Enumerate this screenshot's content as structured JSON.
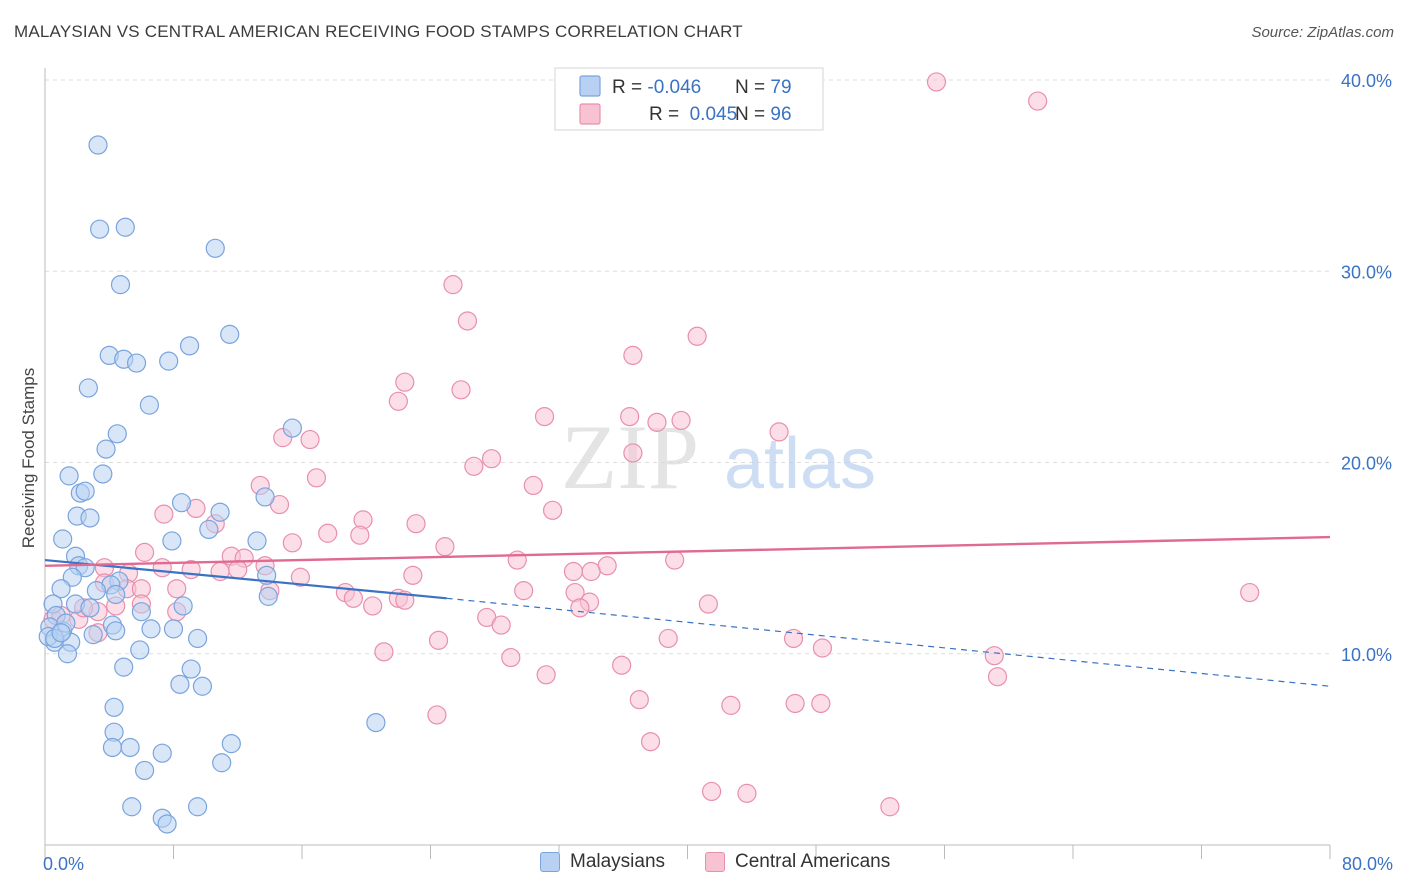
{
  "title": "MALAYSIAN VS CENTRAL AMERICAN RECEIVING FOOD STAMPS CORRELATION CHART",
  "source": "Source: ZipAtlas.com",
  "watermark": {
    "zip": "ZIP",
    "atlas": "atlas"
  },
  "colors": {
    "malaysians_fill": "#b8d1f2",
    "malaysians_stroke": "#7aa4de",
    "malaysians_line": "#3a72c4",
    "central_fill": "#f7c3d3",
    "central_stroke": "#e98fad",
    "central_line": "#e06a92",
    "value_text": "#3a72c4",
    "grid": "#dddddd"
  },
  "stats_legend": {
    "rows": [
      {
        "r_label": "R = ",
        "r_value": "-0.046",
        "n_label": "N = ",
        "n_value": "79"
      },
      {
        "r_label": "R = ",
        "r_value": " 0.045",
        "n_label": "N = ",
        "n_value": "96"
      }
    ]
  },
  "chart_data": {
    "type": "scatter",
    "title": "MALAYSIAN VS CENTRAL AMERICAN RECEIVING FOOD STAMPS CORRELATION CHART",
    "xlabel": "",
    "ylabel": "Receiving Food Stamps",
    "xlim": [
      0,
      80
    ],
    "ylim": [
      0,
      40
    ],
    "x_tick_labels": [
      "0.0%",
      "80.0%"
    ],
    "y_ticks": [
      10,
      20,
      30,
      40
    ],
    "y_tick_labels": [
      "10.0%",
      "20.0%",
      "30.0%",
      "40.0%"
    ],
    "grid": true,
    "legend_position": "bottom",
    "series": [
      {
        "name": "Malaysians",
        "r": -0.046,
        "n": 79,
        "trend": {
          "x0": 0,
          "y0": 14.9,
          "x1": 25,
          "y1": 12.9,
          "dashed_to_x": 80,
          "dashed_to_y": 8.3
        },
        "points": [
          [
            3.3,
            36.6
          ],
          [
            3.4,
            32.2
          ],
          [
            5.0,
            32.3
          ],
          [
            10.6,
            31.2
          ],
          [
            4.7,
            29.3
          ],
          [
            11.5,
            26.7
          ],
          [
            9.0,
            26.1
          ],
          [
            4.0,
            25.6
          ],
          [
            4.9,
            25.4
          ],
          [
            5.7,
            25.2
          ],
          [
            7.7,
            25.3
          ],
          [
            2.7,
            23.9
          ],
          [
            6.5,
            23.0
          ],
          [
            15.4,
            21.8
          ],
          [
            4.5,
            21.5
          ],
          [
            3.8,
            20.7
          ],
          [
            1.5,
            19.3
          ],
          [
            3.6,
            19.4
          ],
          [
            2.2,
            18.4
          ],
          [
            2.5,
            18.5
          ],
          [
            13.7,
            18.2
          ],
          [
            8.5,
            17.9
          ],
          [
            2.0,
            17.2
          ],
          [
            2.8,
            17.1
          ],
          [
            10.9,
            17.4
          ],
          [
            10.2,
            16.5
          ],
          [
            1.1,
            16.0
          ],
          [
            7.9,
            15.9
          ],
          [
            13.2,
            15.9
          ],
          [
            1.9,
            15.1
          ],
          [
            2.1,
            14.6
          ],
          [
            2.5,
            14.5
          ],
          [
            13.8,
            14.1
          ],
          [
            1.7,
            14.0
          ],
          [
            4.6,
            13.8
          ],
          [
            4.1,
            13.6
          ],
          [
            1.0,
            13.4
          ],
          [
            3.2,
            13.3
          ],
          [
            4.4,
            13.1
          ],
          [
            13.9,
            13.0
          ],
          [
            0.5,
            12.6
          ],
          [
            1.9,
            12.6
          ],
          [
            2.8,
            12.4
          ],
          [
            8.6,
            12.5
          ],
          [
            0.7,
            12.0
          ],
          [
            6.0,
            12.2
          ],
          [
            0.3,
            11.4
          ],
          [
            4.2,
            11.5
          ],
          [
            4.4,
            11.2
          ],
          [
            6.6,
            11.3
          ],
          [
            8.0,
            11.3
          ],
          [
            3.0,
            11.0
          ],
          [
            1.1,
            11.2
          ],
          [
            9.5,
            10.8
          ],
          [
            0.6,
            10.6
          ],
          [
            1.6,
            10.6
          ],
          [
            0.2,
            10.9
          ],
          [
            5.9,
            10.2
          ],
          [
            1.4,
            10.0
          ],
          [
            4.9,
            9.3
          ],
          [
            9.1,
            9.2
          ],
          [
            8.4,
            8.4
          ],
          [
            9.8,
            8.3
          ],
          [
            4.3,
            7.2
          ],
          [
            20.6,
            6.4
          ],
          [
            4.3,
            5.9
          ],
          [
            11.6,
            5.3
          ],
          [
            4.2,
            5.1
          ],
          [
            5.3,
            5.1
          ],
          [
            7.3,
            4.8
          ],
          [
            11.0,
            4.3
          ],
          [
            6.2,
            3.9
          ],
          [
            5.4,
            2.0
          ],
          [
            9.5,
            2.0
          ],
          [
            7.3,
            1.4
          ],
          [
            7.6,
            1.1
          ],
          [
            0.6,
            10.8
          ],
          [
            1.3,
            11.6
          ],
          [
            1.0,
            11.1
          ]
        ]
      },
      {
        "name": "Central Americans",
        "r": 0.045,
        "n": 96,
        "trend": {
          "x0": 0,
          "y0": 14.6,
          "x1": 80,
          "y1": 16.1
        },
        "points": [
          [
            55.5,
            39.9
          ],
          [
            61.8,
            38.9
          ],
          [
            25.4,
            29.3
          ],
          [
            26.3,
            27.4
          ],
          [
            40.6,
            26.6
          ],
          [
            36.6,
            25.6
          ],
          [
            22.4,
            24.2
          ],
          [
            25.9,
            23.8
          ],
          [
            22.0,
            23.2
          ],
          [
            31.1,
            22.4
          ],
          [
            36.4,
            22.4
          ],
          [
            38.1,
            22.1
          ],
          [
            39.6,
            22.2
          ],
          [
            45.7,
            21.6
          ],
          [
            14.8,
            21.3
          ],
          [
            16.5,
            21.2
          ],
          [
            36.6,
            20.5
          ],
          [
            27.8,
            20.2
          ],
          [
            26.7,
            19.8
          ],
          [
            16.9,
            19.2
          ],
          [
            30.4,
            18.8
          ],
          [
            13.4,
            18.8
          ],
          [
            14.6,
            17.8
          ],
          [
            9.4,
            17.6
          ],
          [
            7.4,
            17.3
          ],
          [
            19.8,
            17.0
          ],
          [
            23.1,
            16.8
          ],
          [
            31.6,
            17.5
          ],
          [
            10.6,
            16.8
          ],
          [
            17.6,
            16.3
          ],
          [
            19.6,
            16.2
          ],
          [
            15.4,
            15.8
          ],
          [
            24.9,
            15.6
          ],
          [
            11.6,
            15.1
          ],
          [
            12.4,
            15.0
          ],
          [
            6.2,
            15.3
          ],
          [
            13.7,
            14.6
          ],
          [
            29.4,
            14.9
          ],
          [
            39.2,
            14.9
          ],
          [
            35.0,
            14.6
          ],
          [
            7.3,
            14.5
          ],
          [
            3.7,
            14.5
          ],
          [
            12.0,
            14.4
          ],
          [
            9.1,
            14.4
          ],
          [
            10.9,
            14.3
          ],
          [
            5.2,
            14.2
          ],
          [
            22.9,
            14.1
          ],
          [
            15.9,
            14.0
          ],
          [
            32.9,
            14.3
          ],
          [
            34.0,
            14.3
          ],
          [
            3.7,
            13.7
          ],
          [
            5.1,
            13.4
          ],
          [
            6.0,
            13.4
          ],
          [
            8.2,
            13.4
          ],
          [
            18.7,
            13.2
          ],
          [
            14.0,
            13.3
          ],
          [
            29.8,
            13.3
          ],
          [
            33.0,
            13.2
          ],
          [
            75.0,
            13.2
          ],
          [
            19.2,
            12.9
          ],
          [
            22.0,
            12.9
          ],
          [
            22.4,
            12.8
          ],
          [
            6.0,
            12.6
          ],
          [
            8.2,
            12.2
          ],
          [
            20.4,
            12.5
          ],
          [
            33.9,
            12.7
          ],
          [
            41.3,
            12.6
          ],
          [
            4.4,
            12.5
          ],
          [
            0.5,
            11.8
          ],
          [
            2.1,
            11.8
          ],
          [
            3.3,
            12.2
          ],
          [
            27.5,
            11.9
          ],
          [
            28.4,
            11.5
          ],
          [
            33.3,
            12.4
          ],
          [
            3.3,
            11.1
          ],
          [
            38.8,
            10.8
          ],
          [
            46.6,
            10.8
          ],
          [
            24.5,
            10.7
          ],
          [
            48.4,
            10.3
          ],
          [
            21.1,
            10.1
          ],
          [
            29.0,
            9.8
          ],
          [
            59.1,
            9.9
          ],
          [
            35.9,
            9.4
          ],
          [
            31.2,
            8.9
          ],
          [
            59.3,
            8.8
          ],
          [
            37.0,
            7.6
          ],
          [
            42.7,
            7.3
          ],
          [
            46.7,
            7.4
          ],
          [
            48.3,
            7.4
          ],
          [
            24.4,
            6.8
          ],
          [
            37.7,
            5.4
          ],
          [
            41.5,
            2.8
          ],
          [
            43.7,
            2.7
          ],
          [
            52.6,
            2.0
          ],
          [
            1.0,
            12.0
          ],
          [
            2.4,
            12.4
          ]
        ]
      }
    ]
  }
}
